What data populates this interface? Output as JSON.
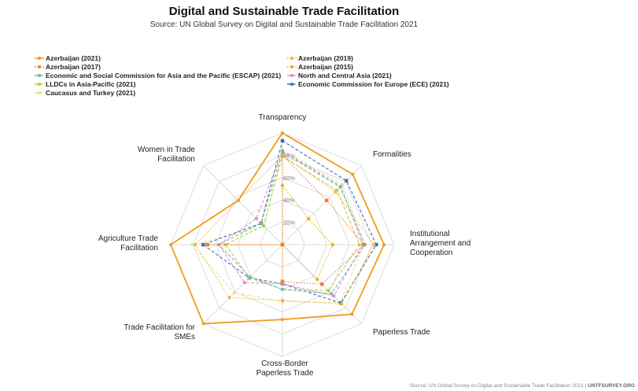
{
  "chart_data": {
    "type": "radar",
    "title": "Digital and Sustainable Trade Facilitation",
    "subtitle": "Source: UN Global Survey on Digital and Sustainable Trade Facilitation 2021",
    "axes": [
      "Transparency",
      "Formalities",
      "Institutional Arrangement and Cooperation",
      "Paperless Trade",
      "Cross-Border Paperless Trade",
      "Trade Facilitation for SMEs",
      "Agriculture Trade Facilitation",
      "Women in Trade Facilitation"
    ],
    "axis_label_lines": [
      [
        "Transparency"
      ],
      [
        "Formalities"
      ],
      [
        "Institutional",
        "Arrangement and",
        "Cooperation"
      ],
      [
        "Paperless Trade"
      ],
      [
        "Cross-Border",
        "Paperless Trade"
      ],
      [
        "Trade Facilitation for",
        "SMEs"
      ],
      [
        "Agriculture Trade",
        "Facilitation"
      ],
      [
        "Women in Trade",
        "Facilitation"
      ]
    ],
    "r_ticks": [
      "20%",
      "40%",
      "60%",
      "80%"
    ],
    "r_range": [
      0,
      100
    ],
    "series": [
      {
        "name": "Azerbaijan (2021)",
        "color": "#f29a1f",
        "dash": "solid",
        "marker": "circle",
        "values": [
          100,
          89,
          91,
          88,
          67,
          100,
          100,
          56
        ]
      },
      {
        "name": "Azerbaijan (2019)",
        "color": "#f2b233",
        "dash": "dotted",
        "marker": "circle",
        "values": [
          80,
          67,
          82,
          75,
          50,
          67,
          78,
          56
        ]
      },
      {
        "name": "Azerbaijan (2017)",
        "color": "#f07f2c",
        "dash": "dotted",
        "marker": "square",
        "values": [
          80,
          56,
          73,
          50,
          33,
          0,
          67,
          0
        ]
      },
      {
        "name": "Azerbaijan (2015)",
        "color": "#e0b400",
        "dash": "dotted",
        "marker": "diamond",
        "values": [
          53,
          33,
          45,
          44,
          0,
          0,
          0,
          0
        ]
      },
      {
        "name": "Economic and Social Commission for Asia and the Pacific (ESCAP) (2021)",
        "color": "#6fb9b1",
        "dash": "dashed",
        "marker": "circle",
        "values": [
          83,
          73,
          74,
          62,
          40,
          41,
          57,
          27
        ]
      },
      {
        "name": "North and Central Asia (2021)",
        "color": "#ea86c9",
        "dash": "dashed",
        "marker": "circle",
        "values": [
          84,
          74,
          72,
          65,
          35,
          48,
          57,
          33
        ]
      },
      {
        "name": "LLDCs in Asia-Pacific (2021)",
        "color": "#b7d03b",
        "dash": "dashed",
        "marker": "circle",
        "values": [
          79,
          69,
          69,
          58,
          40,
          42,
          51,
          24
        ]
      },
      {
        "name": "Economic Commission for Europe (ECE) (2021)",
        "color": "#3d6fb0",
        "dash": "dashed",
        "marker": "square",
        "values": [
          93,
          81,
          84,
          74,
          35,
          42,
          71,
          27
        ]
      },
      {
        "name": "Caucasus and Turkey (2021)",
        "color": "#d7ea8e",
        "dash": "dashed",
        "marker": "circle",
        "values": [
          85,
          76,
          73,
          73,
          51,
          61,
          81,
          23
        ]
      }
    ]
  },
  "footer": {
    "source": "Source: UN Global Survey on Digital and Sustainable Trade Facilitation 2021 | ",
    "site": "UNTFSURVEY.ORG"
  }
}
